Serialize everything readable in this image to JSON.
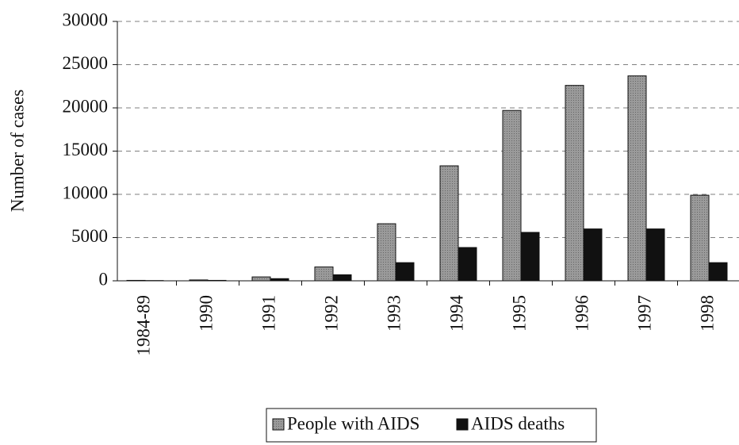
{
  "chart_data": {
    "type": "bar",
    "y_label": "Number of cases",
    "categories": [
      "1984-89",
      "1990",
      "1991",
      "1992",
      "1993",
      "1994",
      "1995",
      "1996",
      "1997",
      "1998"
    ],
    "series": [
      {
        "name": "People with AIDS",
        "color": "#9a9a9a",
        "values": [
          50,
          100,
          450,
          1600,
          6600,
          13300,
          19700,
          22600,
          23700,
          9900
        ]
      },
      {
        "name": "AIDS deaths",
        "color": "#111111",
        "values": [
          30,
          50,
          250,
          700,
          2100,
          3850,
          5600,
          6000,
          6000,
          2100
        ]
      }
    ],
    "ylim": [
      0,
      30000
    ],
    "yticks": [
      0,
      5000,
      10000,
      15000,
      20000,
      25000,
      30000
    ],
    "grid": true,
    "legend": "bottom"
  }
}
